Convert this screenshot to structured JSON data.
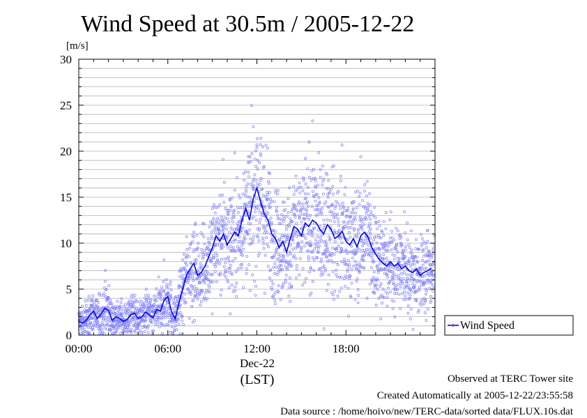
{
  "chart_data": {
    "type": "scatter",
    "title": "Wind Speed at 30.5m / 2005-12-22",
    "ylabel": "[m/s]",
    "xlabel": "(LST)",
    "date_label": "Dec-22",
    "x_ticks": [
      "00:00",
      "06:00",
      "12:00",
      "18:00"
    ],
    "x_range_hours": [
      0,
      24
    ],
    "y_ticks": [
      0,
      5,
      10,
      15,
      20,
      25,
      30
    ],
    "ylim": [
      0,
      30
    ],
    "grid": "horizontal, every 1 m/s",
    "legend_placement": "right, outside plot",
    "series": [
      {
        "name": "Wind Speed",
        "line_color": "#0000ee",
        "point_color": "#7b7bff",
        "mean_line": {
          "x_hours": [
            0.0,
            0.25,
            0.5,
            0.75,
            1.0,
            1.25,
            1.5,
            1.75,
            2.0,
            2.25,
            2.5,
            2.75,
            3.0,
            3.25,
            3.5,
            3.75,
            4.0,
            4.25,
            4.5,
            4.75,
            5.0,
            5.25,
            5.5,
            5.75,
            6.0,
            6.25,
            6.5,
            6.75,
            7.0,
            7.25,
            7.5,
            7.75,
            8.0,
            8.25,
            8.5,
            8.75,
            9.0,
            9.25,
            9.5,
            9.75,
            10.0,
            10.25,
            10.5,
            10.75,
            11.0,
            11.25,
            11.5,
            11.75,
            12.0,
            12.25,
            12.5,
            12.75,
            13.0,
            13.25,
            13.5,
            13.75,
            14.0,
            14.25,
            14.5,
            14.75,
            15.0,
            15.25,
            15.5,
            15.75,
            16.0,
            16.25,
            16.5,
            16.75,
            17.0,
            17.25,
            17.5,
            17.75,
            18.0,
            18.25,
            18.5,
            18.75,
            19.0,
            19.25,
            19.5,
            19.75,
            20.0,
            20.25,
            20.5,
            20.75,
            21.0,
            21.25,
            21.5,
            21.75,
            22.0,
            22.25,
            22.5,
            22.75,
            23.0,
            23.25,
            23.5,
            23.75
          ],
          "values": [
            1.5,
            1.3,
            1.6,
            2.2,
            2.6,
            1.8,
            2.3,
            2.9,
            2.7,
            1.6,
            2.0,
            1.8,
            1.5,
            1.7,
            2.2,
            2.4,
            1.8,
            2.0,
            2.5,
            2.2,
            1.9,
            2.8,
            2.6,
            3.8,
            4.2,
            2.5,
            1.8,
            3.5,
            5.0,
            6.5,
            7.2,
            7.8,
            6.5,
            6.8,
            7.5,
            8.5,
            9.5,
            10.8,
            10.2,
            11.0,
            9.8,
            10.5,
            11.2,
            10.8,
            12.5,
            13.8,
            12.5,
            14.8,
            16.0,
            14.5,
            13.2,
            12.5,
            11.0,
            10.5,
            9.5,
            10.2,
            9.0,
            10.5,
            11.8,
            11.5,
            10.8,
            12.2,
            11.8,
            12.5,
            12.2,
            11.5,
            11.0,
            12.0,
            11.5,
            10.5,
            10.8,
            11.3,
            10.2,
            9.8,
            10.5,
            9.6,
            10.8,
            11.2,
            10.6,
            9.5,
            8.8,
            8.2,
            7.8,
            7.5,
            8.0,
            7.5,
            7.8,
            7.2,
            7.5,
            7.0,
            6.8,
            7.2,
            6.5,
            6.8,
            7.0,
            7.3
          ]
        }
      }
    ]
  },
  "footer": {
    "line1": "Observed at TERC Tower site",
    "line2": "Created Automatically at 2005-12-22/23:55:58",
    "line3": "Data source : /home/hoivo/new/TERC-data/sorted  data/FLUX.10s.dat"
  }
}
